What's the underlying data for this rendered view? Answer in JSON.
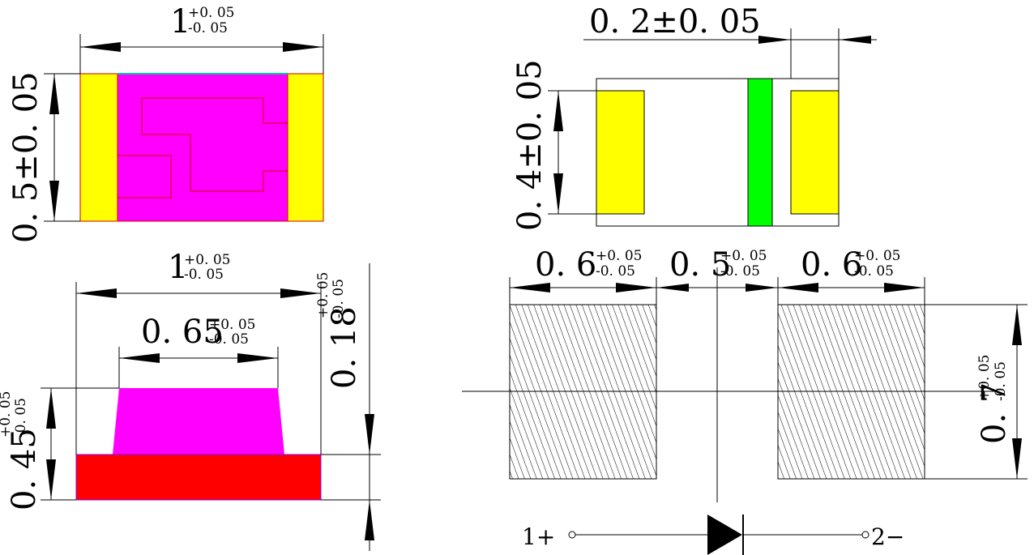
{
  "colors": {
    "body": "#ff00ff",
    "terminal": "#ffff00",
    "base": "#ff0000",
    "cathode_band": "#00ff00",
    "outline": "#000000"
  },
  "top_view": {
    "length": {
      "nominal": "1",
      "tol_plus": "+0. 05",
      "tol_minus": "-0. 05"
    },
    "width": {
      "text": "0. 5±0. 05"
    }
  },
  "side_view": {
    "length": {
      "nominal": "1",
      "tol_plus": "+0. 05",
      "tol_minus": "-0. 05"
    },
    "top_width": {
      "nominal": "0. 65",
      "tol_plus": "+0. 05",
      "tol_minus": "-0. 05"
    },
    "base_height": {
      "nominal": "0. 18",
      "tol_plus": "+0. 05",
      "tol_minus": "-0. 05"
    },
    "total_height": {
      "nominal": "0. 45",
      "tol_plus": "+0. 05",
      "tol_minus": "-0. 05"
    }
  },
  "bottom_view": {
    "cathode_band_width": {
      "text": "0. 2±0. 05"
    },
    "pad_height": {
      "text": "0. 4±0. 05"
    }
  },
  "footprint": {
    "pad_left_width": {
      "nominal": "0. 6",
      "tol_plus": "+0. 05",
      "tol_minus": "-0. 05"
    },
    "gap": {
      "nominal": "0. 5",
      "tol_plus": "+0. 05",
      "tol_minus": "-0. 05"
    },
    "pad_right_width": {
      "nominal": "0. 6",
      "tol_plus": "+0. 05",
      "tol_minus": "-0. 05"
    },
    "pad_height": {
      "nominal": "0. 7",
      "tol_plus": "+0. 05",
      "tol_minus": "-0. 05"
    }
  },
  "schematic": {
    "anode_label": "1+",
    "cathode_label": "2−"
  }
}
